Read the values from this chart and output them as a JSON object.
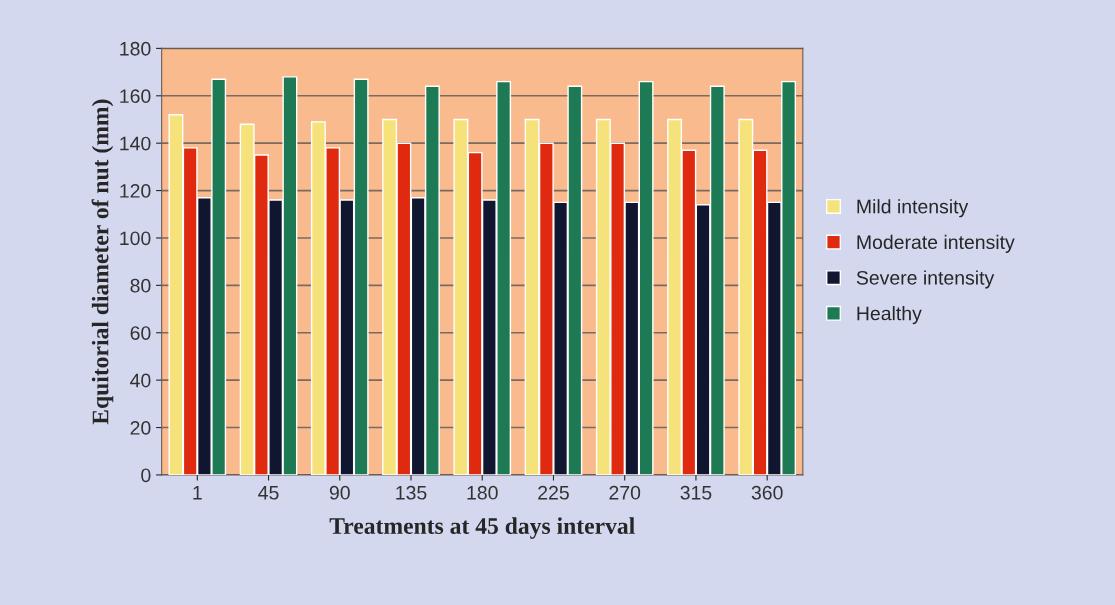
{
  "chart_data": {
    "type": "bar",
    "xlabel": "Treatments at 45 days interval",
    "ylabel": "Equitorial diameter of nut (mm)",
    "categories": [
      "1",
      "45",
      "90",
      "135",
      "180",
      "225",
      "270",
      "315",
      "360"
    ],
    "series": [
      {
        "name": "Mild intensity",
        "color": "#f5e27a",
        "values": [
          152,
          148,
          149,
          150,
          150,
          150,
          150,
          150,
          150
        ]
      },
      {
        "name": "Moderate intensity",
        "color": "#e02a10",
        "values": [
          138,
          135,
          138,
          140,
          136,
          140,
          140,
          137,
          137
        ]
      },
      {
        "name": "Severe intensity",
        "color": "#101530",
        "values": [
          117,
          116,
          116,
          117,
          116,
          115,
          115,
          114,
          115
        ]
      },
      {
        "name": "Healthy",
        "color": "#1e7a55",
        "values": [
          167,
          168,
          167,
          164,
          166,
          164,
          166,
          164,
          166
        ]
      }
    ],
    "ylim": [
      0,
      180
    ],
    "yticks": [
      0,
      20,
      40,
      60,
      80,
      100,
      120,
      140,
      160,
      180
    ],
    "grid": "y",
    "legend": "right"
  }
}
